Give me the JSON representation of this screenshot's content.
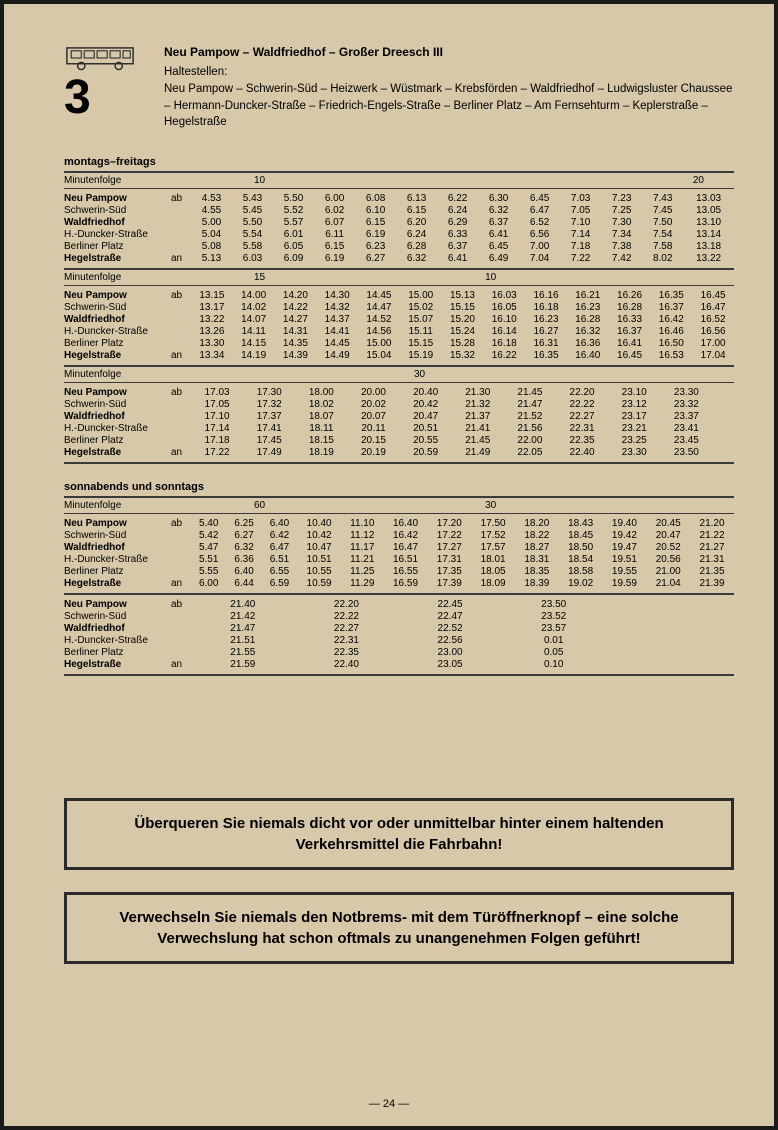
{
  "page_number": "— 24 —",
  "line_number": "3",
  "route_title": "Neu Pampow – Waldfriedhof – Großer Dreesch III",
  "haltestellen_label": "Haltestellen:",
  "haltestellen_text": "Neu Pampow – Schwerin-Süd – Heizwerk – Wüstmark – Krebsförden – Waldfriedhof – Ludwigsluster Chaussee – Hermann-Duncker-Straße – Friedrich-Engels-Straße – Berliner Platz – Am Fernsehturm – Keplerstraße – Hegelstraße",
  "stops": [
    "Neu Pampow",
    "Schwerin-Süd",
    "Waldfriedhof",
    "H.-Duncker-Straße",
    "Berliner Platz",
    "Hegelstraße"
  ],
  "ab_label": "ab",
  "an_label": "an",
  "minutenfolge_label": "Minutenfolge",
  "section_weekday": "montags–freitags",
  "section_weekend": "sonnabends und sonntags",
  "weekday_blocks": [
    {
      "minutenfolge": [
        "10",
        "20"
      ],
      "rows": [
        [
          "4.53",
          "5.43",
          "5.50",
          "6.00",
          "6.08",
          "6.13",
          "6.22",
          "6.30",
          "6.45",
          "7.03",
          "7.23",
          "7.43",
          "13.03"
        ],
        [
          "4.55",
          "5.45",
          "5.52",
          "6.02",
          "6.10",
          "6.15",
          "6.24",
          "6.32",
          "6.47",
          "7.05",
          "7.25",
          "7.45",
          "13.05"
        ],
        [
          "5.00",
          "5.50",
          "5.57",
          "6.07",
          "6.15",
          "6.20",
          "6.29",
          "6.37",
          "6.52",
          "7.10",
          "7.30",
          "7.50",
          "13.10"
        ],
        [
          "5.04",
          "5.54",
          "6.01",
          "6.11",
          "6.19",
          "6.24",
          "6.33",
          "6.41",
          "6.56",
          "7.14",
          "7.34",
          "7.54",
          "13.14"
        ],
        [
          "5.08",
          "5.58",
          "6.05",
          "6.15",
          "6.23",
          "6.28",
          "6.37",
          "6.45",
          "7.00",
          "7.18",
          "7.38",
          "7.58",
          "13.18"
        ],
        [
          "5.13",
          "6.03",
          "6.09",
          "6.19",
          "6.27",
          "6.32",
          "6.41",
          "6.49",
          "7.04",
          "7.22",
          "7.42",
          "8.02",
          "13.22"
        ]
      ]
    },
    {
      "minutenfolge": [
        "15",
        "10"
      ],
      "rows": [
        [
          "13.15",
          "14.00",
          "14.20",
          "14.30",
          "14.45",
          "15.00",
          "15.13",
          "16.03",
          "16.16",
          "16.21",
          "16.26",
          "16.35",
          "16.45"
        ],
        [
          "13.17",
          "14.02",
          "14.22",
          "14.32",
          "14.47",
          "15.02",
          "15.15",
          "16.05",
          "16.18",
          "16.23",
          "16.28",
          "16.37",
          "16.47"
        ],
        [
          "13.22",
          "14.07",
          "14.27",
          "14.37",
          "14.52",
          "15.07",
          "15.20",
          "16.10",
          "16.23",
          "16.28",
          "16.33",
          "16.42",
          "16.52"
        ],
        [
          "13.26",
          "14.11",
          "14.31",
          "14.41",
          "14.56",
          "15.11",
          "15.24",
          "16.14",
          "16.27",
          "16.32",
          "16.37",
          "16.46",
          "16.56"
        ],
        [
          "13.30",
          "14.15",
          "14.35",
          "14.45",
          "15.00",
          "15.15",
          "15.28",
          "16.18",
          "16.31",
          "16.36",
          "16.41",
          "16.50",
          "17.00"
        ],
        [
          "13.34",
          "14.19",
          "14.39",
          "14.49",
          "15.04",
          "15.19",
          "15.32",
          "16.22",
          "16.35",
          "16.40",
          "16.45",
          "16.53",
          "17.04"
        ]
      ]
    },
    {
      "minutenfolge": [
        "30"
      ],
      "rows": [
        [
          "17.03",
          "17.30",
          "18.00",
          "20.00",
          "20.40",
          "21.30",
          "21.45",
          "22.20",
          "23.10",
          "23.30",
          "",
          "",
          ""
        ],
        [
          "17.05",
          "17.32",
          "18.02",
          "20.02",
          "20.42",
          "21.32",
          "21.47",
          "22.22",
          "23.12",
          "23.32",
          "",
          "",
          ""
        ],
        [
          "17.10",
          "17.37",
          "18.07",
          "20.07",
          "20.47",
          "21.37",
          "21.52",
          "22.27",
          "23.17",
          "23.37",
          "",
          "",
          ""
        ],
        [
          "17.14",
          "17.41",
          "18.11",
          "20.11",
          "20.51",
          "21.41",
          "21.56",
          "22.31",
          "23.21",
          "23.41",
          "",
          "",
          ""
        ],
        [
          "17.18",
          "17.45",
          "18.15",
          "20.15",
          "20.55",
          "21.45",
          "22.00",
          "22.35",
          "23.25",
          "23.45",
          "",
          "",
          ""
        ],
        [
          "17.22",
          "17.49",
          "18.19",
          "20.19",
          "20.59",
          "21.49",
          "22.05",
          "22.40",
          "23.30",
          "23.50",
          "",
          "",
          ""
        ]
      ]
    }
  ],
  "weekend_blocks": [
    {
      "minutenfolge": [
        "60",
        "30"
      ],
      "rows": [
        [
          "5.40",
          "6.25",
          "6.40",
          "10.40",
          "11.10",
          "16.40",
          "17.20",
          "17.50",
          "18.20",
          "18.43",
          "19.40",
          "20.45",
          "21.20"
        ],
        [
          "5.42",
          "6.27",
          "6.42",
          "10.42",
          "11.12",
          "16.42",
          "17.22",
          "17.52",
          "18.22",
          "18.45",
          "19.42",
          "20.47",
          "21.22"
        ],
        [
          "5.47",
          "6.32",
          "6.47",
          "10.47",
          "11.17",
          "16.47",
          "17.27",
          "17.57",
          "18.27",
          "18.50",
          "19.47",
          "20.52",
          "21.27"
        ],
        [
          "5.51",
          "6.36",
          "6.51",
          "10.51",
          "11.21",
          "16.51",
          "17.31",
          "18.01",
          "18.31",
          "18.54",
          "19.51",
          "20.56",
          "21.31"
        ],
        [
          "5.55",
          "6.40",
          "6.55",
          "10.55",
          "11.25",
          "16.55",
          "17.35",
          "18.05",
          "18.35",
          "18.58",
          "19.55",
          "21.00",
          "21.35"
        ],
        [
          "6.00",
          "6.44",
          "6.59",
          "10.59",
          "11.29",
          "16.59",
          "17.39",
          "18.09",
          "18.39",
          "19.02",
          "19.59",
          "21.04",
          "21.39"
        ]
      ]
    },
    {
      "minutenfolge": [],
      "rows": [
        [
          "21.40",
          "22.20",
          "22.45",
          "23.50",
          "",
          "",
          "",
          "",
          "",
          "",
          "",
          "",
          ""
        ],
        [
          "21.42",
          "22.22",
          "22.47",
          "23.52",
          "",
          "",
          "",
          "",
          "",
          "",
          "",
          "",
          ""
        ],
        [
          "21.47",
          "22.27",
          "22.52",
          "23.57",
          "",
          "",
          "",
          "",
          "",
          "",
          "",
          "",
          ""
        ],
        [
          "21.51",
          "22.31",
          "22.56",
          "0.01",
          "",
          "",
          "",
          "",
          "",
          "",
          "",
          "",
          ""
        ],
        [
          "21.55",
          "22.35",
          "23.00",
          "0.05",
          "",
          "",
          "",
          "",
          "",
          "",
          "",
          "",
          ""
        ],
        [
          "21.59",
          "22.40",
          "23.05",
          "0.10",
          "",
          "",
          "",
          "",
          "",
          "",
          "",
          "",
          ""
        ]
      ]
    }
  ],
  "warnings": [
    "Überqueren Sie niemals dicht vor oder unmittelbar hinter einem haltenden Verkehrsmittel die Fahrbahn!",
    "Verwechseln Sie niemals den Notbrems- mit dem Türöffnerknopf – eine solche Verwechslung hat schon oftmals zu unangenehmen Folgen geführt!"
  ],
  "colors": {
    "background": "#d6c8a8",
    "text": "#2a2a2a",
    "border": "#2a2a2a"
  }
}
